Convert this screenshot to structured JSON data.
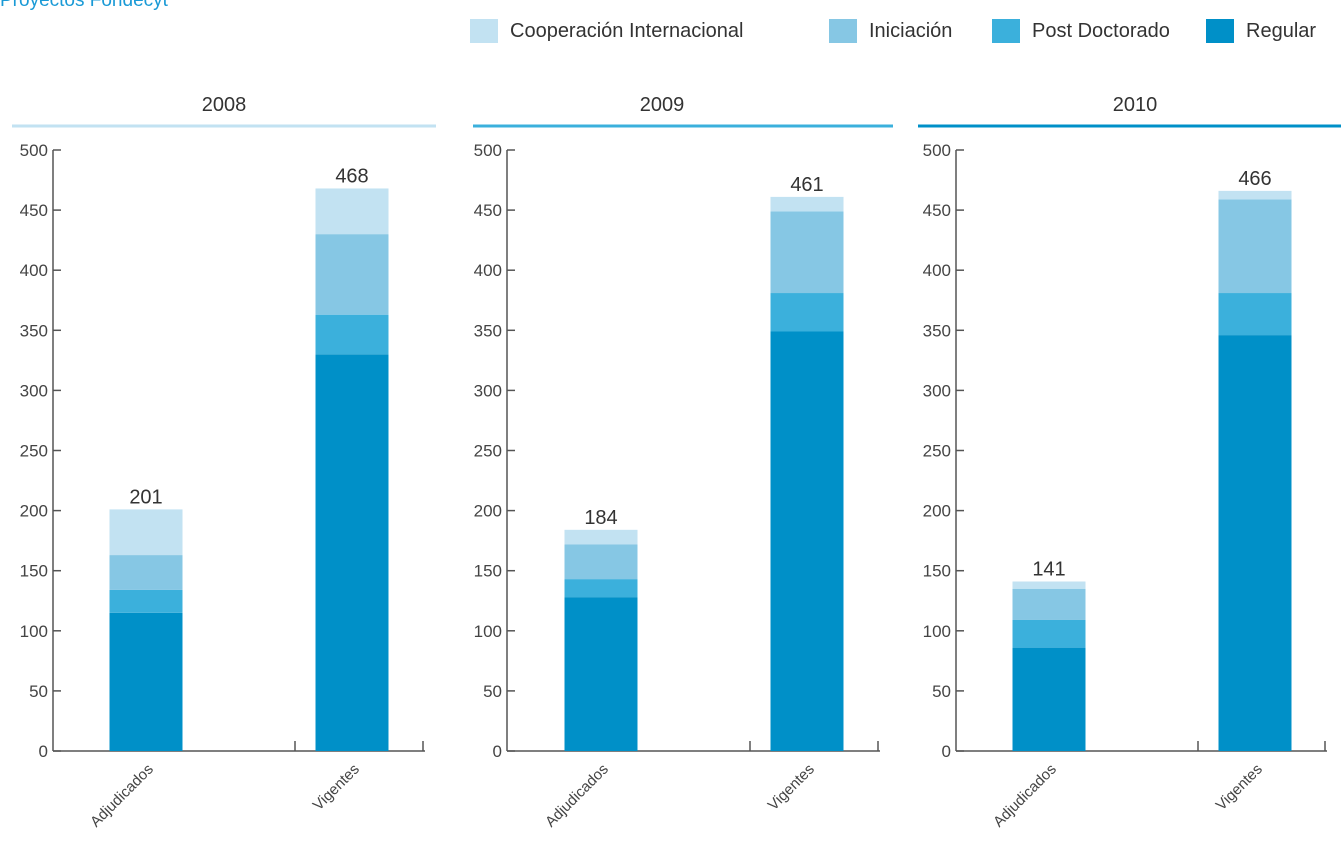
{
  "page": {
    "title": "Proyectos Fondecyt"
  },
  "legend": [
    {
      "label": "Cooperación Internacional",
      "color": "#c2e2f2"
    },
    {
      "label": "Iniciación",
      "color": "#86c7e4"
    },
    {
      "label": "Post Doctorado",
      "color": "#3bb0dc"
    },
    {
      "label": "Regular",
      "color": "#0090c8"
    }
  ],
  "chart_data": [
    {
      "type": "bar",
      "stacked": true,
      "title": "2008",
      "title_rule_color": "#c2e2f2",
      "categories": [
        "Adjudicados",
        "Vigentes"
      ],
      "totals": [
        "201",
        "468"
      ],
      "ylim": [
        0,
        500
      ],
      "yticks": [
        "0",
        "50",
        "100",
        "150",
        "200",
        "250",
        "300",
        "350",
        "400",
        "450",
        "500"
      ],
      "series": [
        {
          "name": "Regular",
          "color": "#0090c8",
          "values": [
            115,
            330
          ]
        },
        {
          "name": "Post Doctorado",
          "color": "#3bb0dc",
          "values": [
            19,
            33
          ]
        },
        {
          "name": "Iniciación",
          "color": "#86c7e4",
          "values": [
            29,
            67
          ]
        },
        {
          "name": "Cooperación Internacional",
          "color": "#c2e2f2",
          "values": [
            38,
            38
          ]
        }
      ]
    },
    {
      "type": "bar",
      "stacked": true,
      "title": "2009",
      "title_rule_color": "#3bb0dc",
      "categories": [
        "Adjudicados",
        "Vigentes"
      ],
      "totals": [
        "184",
        "461"
      ],
      "ylim": [
        0,
        500
      ],
      "yticks": [
        "0",
        "50",
        "100",
        "150",
        "200",
        "250",
        "300",
        "350",
        "400",
        "450",
        "500"
      ],
      "series": [
        {
          "name": "Regular",
          "color": "#0090c8",
          "values": [
            128,
            349
          ]
        },
        {
          "name": "Post Doctorado",
          "color": "#3bb0dc",
          "values": [
            15,
            32
          ]
        },
        {
          "name": "Iniciación",
          "color": "#86c7e4",
          "values": [
            29,
            68
          ]
        },
        {
          "name": "Cooperación Internacional",
          "color": "#c2e2f2",
          "values": [
            12,
            12
          ]
        }
      ]
    },
    {
      "type": "bar",
      "stacked": true,
      "title": "2010",
      "title_rule_color": "#0090c8",
      "categories": [
        "Adjudicados",
        "Vigentes"
      ],
      "totals": [
        "141",
        "466"
      ],
      "ylim": [
        0,
        500
      ],
      "yticks": [
        "0",
        "50",
        "100",
        "150",
        "200",
        "250",
        "300",
        "350",
        "400",
        "450",
        "500"
      ],
      "series": [
        {
          "name": "Regular",
          "color": "#0090c8",
          "values": [
            86,
            346
          ]
        },
        {
          "name": "Post Doctorado",
          "color": "#3bb0dc",
          "values": [
            23,
            35
          ]
        },
        {
          "name": "Iniciación",
          "color": "#86c7e4",
          "values": [
            26,
            78
          ]
        },
        {
          "name": "Cooperación Internacional",
          "color": "#c2e2f2",
          "values": [
            6,
            7
          ]
        }
      ]
    }
  ]
}
